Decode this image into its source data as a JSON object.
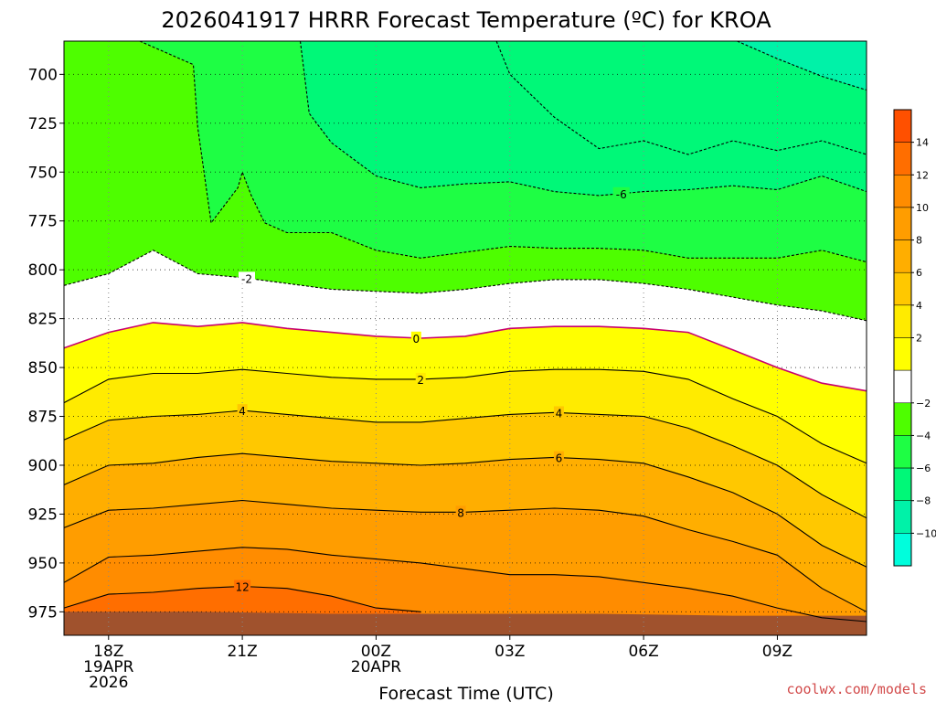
{
  "chart_data": {
    "type": "contour",
    "title": "2026041917 HRRR Forecast Temperature (ºC) for KROA",
    "xlabel": "Forecast Time (UTC)",
    "ylabel": "",
    "y_axis": {
      "unit": "hPa",
      "inverted": true,
      "ylim": [
        987,
        683
      ],
      "ticks": [
        700,
        725,
        750,
        775,
        800,
        825,
        850,
        875,
        900,
        925,
        950,
        975
      ]
    },
    "x_axis": {
      "xlim": [
        17,
        35
      ],
      "ticks": [
        {
          "x": 18,
          "lines": [
            "18Z",
            "19APR",
            "2026"
          ]
        },
        {
          "x": 21,
          "lines": [
            "21Z"
          ]
        },
        {
          "x": 24,
          "lines": [
            "00Z",
            "20APR"
          ]
        },
        {
          "x": 27,
          "lines": [
            "03Z"
          ]
        },
        {
          "x": 30,
          "lines": [
            "06Z"
          ]
        },
        {
          "x": 33,
          "lines": [
            "09Z"
          ]
        }
      ]
    },
    "grid": "dotted",
    "colorbar": {
      "ticks": [
        14,
        12,
        10,
        8,
        6,
        4,
        2,
        -2,
        -4,
        -6,
        -8,
        -10
      ],
      "bands": [
        {
          "range": [
            14,
            16
          ],
          "color": "#ff5000"
        },
        {
          "range": [
            12,
            14
          ],
          "color": "#ff6e00"
        },
        {
          "range": [
            10,
            12
          ],
          "color": "#ff8c00"
        },
        {
          "range": [
            8,
            10
          ],
          "color": "#ff9d00"
        },
        {
          "range": [
            6,
            8
          ],
          "color": "#ffae00"
        },
        {
          "range": [
            4,
            6
          ],
          "color": "#ffc800"
        },
        {
          "range": [
            2,
            4
          ],
          "color": "#ffeb00"
        },
        {
          "range": [
            0,
            2
          ],
          "color": "#ffff00"
        },
        {
          "range": [
            -2,
            0
          ],
          "color": "#ffffff"
        },
        {
          "range": [
            -4,
            -2
          ],
          "color": "#4efe00"
        },
        {
          "range": [
            -6,
            -4
          ],
          "color": "#1efe44"
        },
        {
          "range": [
            -8,
            -6
          ],
          "color": "#00f878"
        },
        {
          "range": [
            -10,
            -8
          ],
          "color": "#00f2a8"
        },
        {
          "range": [
            -12,
            -10
          ],
          "color": "#00fedc"
        }
      ]
    },
    "ground": {
      "color": "#a0522d",
      "pressure": [
        975,
        975,
        976,
        976,
        976,
        977,
        977
      ]
    },
    "contours": [
      {
        "value": -8,
        "style": "dashed",
        "labeled": false,
        "x": [
          32.1,
          33,
          34,
          35
        ],
        "p": [
          683,
          692,
          701,
          708
        ]
      },
      {
        "value": -6,
        "style": "dashed",
        "labeled": false,
        "x": [
          26.7,
          27,
          28,
          29,
          30,
          31,
          32,
          33,
          34,
          35
        ],
        "p": [
          683,
          700,
          722,
          738,
          734,
          741,
          734,
          739,
          734,
          741
        ]
      },
      {
        "value": -6,
        "style": "dashed",
        "labeled": true,
        "label_at": 29.5,
        "x": [
          22.3,
          22.5,
          23,
          24,
          25,
          26,
          27,
          28,
          29,
          30,
          31,
          32,
          33,
          34,
          35
        ],
        "p": [
          683,
          720,
          735,
          752,
          758,
          756,
          755,
          760,
          762,
          760,
          759,
          757,
          759,
          752,
          760
        ]
      },
      {
        "value": -4,
        "style": "dashed",
        "labeled": false,
        "x": [
          18.7,
          19.5,
          19.9,
          20.0,
          20.3,
          20.9,
          21.0,
          21.2,
          21.5,
          22.0,
          23.0,
          24.0,
          25.0,
          26.0,
          27.0,
          28.0,
          29.0,
          30.0,
          31.0,
          32.0,
          33.0,
          34.0,
          35.0
        ],
        "p": [
          683,
          691,
          695,
          727,
          776,
          758,
          750,
          762,
          776,
          781,
          781,
          790,
          794,
          791,
          788,
          789,
          789,
          790,
          794,
          794,
          794,
          790,
          796
        ]
      },
      {
        "value": -2,
        "style": "dashed",
        "labeled": true,
        "label_at": 21.1,
        "x": [
          17,
          18,
          19,
          20,
          21,
          22,
          23,
          24,
          25,
          26,
          27,
          28,
          29,
          30,
          31,
          32,
          33,
          34,
          35
        ],
        "p": [
          808,
          802,
          790,
          802,
          804,
          807,
          810,
          811,
          812,
          810,
          807,
          805,
          805,
          807,
          810,
          814,
          818,
          821,
          826
        ]
      },
      {
        "value": 0,
        "style": "solid",
        "color": "#c8006e",
        "labeled": true,
        "label_at": 24.9,
        "x": [
          17,
          18,
          19,
          20,
          21,
          22,
          23,
          24,
          25,
          26,
          27,
          28,
          29,
          30,
          31,
          32,
          33,
          34,
          35
        ],
        "p": [
          840,
          832,
          827,
          829,
          827,
          830,
          832,
          834,
          835,
          834,
          830,
          829,
          829,
          830,
          832,
          841,
          850,
          858,
          862
        ]
      },
      {
        "value": 2,
        "style": "solid",
        "labeled": true,
        "label_at": 25,
        "x": [
          17,
          18,
          19,
          20,
          21,
          22,
          23,
          24,
          25,
          26,
          27,
          28,
          29,
          30,
          31,
          32,
          33,
          34,
          35
        ],
        "p": [
          868,
          856,
          853,
          853,
          851,
          853,
          855,
          856,
          856,
          855,
          852,
          851,
          851,
          852,
          856,
          866,
          875,
          889,
          899
        ]
      },
      {
        "value": 4,
        "style": "solid",
        "labeled": true,
        "label_at": 21,
        "label2_at": 28.1,
        "x": [
          17,
          18,
          19,
          20,
          21,
          22,
          23,
          24,
          25,
          26,
          27,
          28,
          29,
          30,
          31,
          32,
          33,
          34,
          35
        ],
        "p": [
          887,
          877,
          875,
          874,
          872,
          874,
          876,
          878,
          878,
          876,
          874,
          873,
          874,
          875,
          881,
          890,
          900,
          915,
          927
        ]
      },
      {
        "value": 6,
        "style": "solid",
        "labeled": true,
        "label_at": 28.1,
        "x": [
          17,
          18,
          19,
          20,
          21,
          22,
          23,
          24,
          25,
          26,
          27,
          28,
          29,
          30,
          31,
          32,
          33,
          34,
          35
        ],
        "p": [
          910,
          900,
          899,
          896,
          894,
          896,
          898,
          899,
          900,
          899,
          897,
          896,
          897,
          899,
          906,
          914,
          925,
          941,
          952
        ]
      },
      {
        "value": 8,
        "style": "solid",
        "labeled": true,
        "label_at": 25.9,
        "x": [
          17,
          18,
          19,
          20,
          21,
          22,
          23,
          24,
          25,
          26,
          27,
          28,
          29,
          30,
          31,
          32,
          33,
          34,
          35
        ],
        "p": [
          932,
          923,
          922,
          920,
          918,
          920,
          922,
          923,
          924,
          924,
          923,
          922,
          923,
          926,
          933,
          939,
          946,
          963,
          975
        ]
      },
      {
        "value": 10,
        "style": "solid",
        "labeled": false,
        "x": [
          17,
          18,
          19,
          20,
          21,
          22,
          23,
          24,
          25,
          26,
          27,
          28,
          29,
          30,
          31,
          32,
          33,
          34,
          35
        ],
        "p": [
          960,
          947,
          946,
          944,
          942,
          943,
          946,
          948,
          950,
          953,
          956,
          956,
          957,
          960,
          963,
          967,
          973,
          978,
          980
        ]
      },
      {
        "value": 12,
        "style": "solid",
        "labeled": true,
        "label_at": 21,
        "x": [
          17,
          18,
          19,
          20,
          21,
          22,
          23,
          24,
          25
        ],
        "p": [
          973,
          966,
          965,
          963,
          962,
          963,
          967,
          973,
          975
        ]
      }
    ],
    "credit": "coolwx.com/models"
  }
}
